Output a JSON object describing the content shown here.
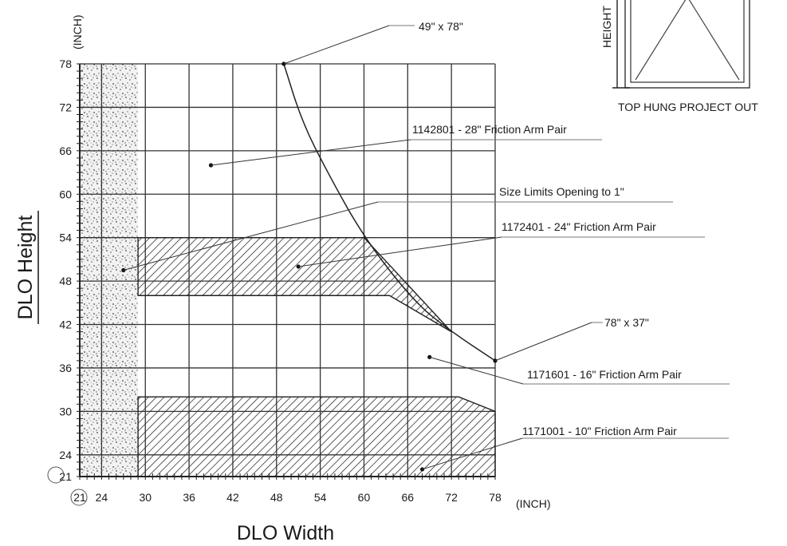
{
  "chart_data": {
    "type": "area",
    "xlabel": "DLO Width",
    "ylabel": "DLO Height",
    "x_unit": "(INCH)",
    "y_unit": "(INCH)",
    "xlim": [
      21,
      78
    ],
    "ylim": [
      21,
      78
    ],
    "x_ticks": [
      21,
      24,
      30,
      36,
      42,
      48,
      54,
      60,
      66,
      72,
      78
    ],
    "y_ticks": [
      21,
      24,
      30,
      36,
      42,
      48,
      54,
      60,
      66,
      72,
      78
    ],
    "grid": true,
    "regions": [
      {
        "name": "Size Limits Opening to 1\"",
        "fill": "stipple",
        "x": [
          21,
          29
        ],
        "y": [
          21,
          78
        ]
      },
      {
        "name": "1171001 - 10\" Friction Arm Pair",
        "fill": "hatch",
        "polygon": [
          [
            29,
            21
          ],
          [
            78,
            21
          ],
          [
            78,
            30
          ],
          [
            73,
            32
          ],
          [
            29,
            32
          ]
        ]
      },
      {
        "name": "1171601 - 16\" Friction Arm Pair",
        "fill": "white",
        "polygon": [
          [
            29,
            32
          ],
          [
            73,
            32
          ],
          [
            78,
            30
          ],
          [
            78,
            37
          ],
          [
            72,
            41
          ],
          [
            63.5,
            46
          ],
          [
            29,
            46
          ]
        ]
      },
      {
        "name": "1172401 - 24\" Friction Arm Pair",
        "fill": "hatch",
        "polygon": [
          [
            29,
            46
          ],
          [
            63.5,
            46
          ],
          [
            72,
            41
          ],
          [
            60,
            54
          ],
          [
            29,
            54
          ]
        ]
      },
      {
        "name": "1142801 - 28\" Friction Arm Pair",
        "fill": "white",
        "polygon": [
          [
            29,
            54
          ],
          [
            60,
            54
          ],
          [
            55,
            63
          ],
          [
            51.5,
            70
          ],
          [
            49,
            78
          ],
          [
            29,
            78
          ]
        ]
      }
    ],
    "max_size_curve": [
      [
        49,
        78
      ],
      [
        51.5,
        70
      ],
      [
        55,
        63
      ],
      [
        60,
        54
      ],
      [
        67,
        45
      ],
      [
        72,
        41
      ],
      [
        78,
        37
      ]
    ],
    "annotations": [
      {
        "text": "49\" x 78\"",
        "x": 49,
        "y": 78
      },
      {
        "text": "78\" x 37\"",
        "x": 78,
        "y": 37
      },
      {
        "text": "1142801 - 28\" Friction Arm Pair",
        "x": 39,
        "y": 64
      },
      {
        "text": "Size Limits Opening to 1\"",
        "x": 27,
        "y": 49.5
      },
      {
        "text": "1172401 - 24\" Friction Arm Pair",
        "x": 51,
        "y": 50
      },
      {
        "text": "1171601 - 16\" Friction Arm Pair",
        "x": 69,
        "y": 37.5
      },
      {
        "text": "1171001 - 10\" Friction Arm Pair",
        "x": 68,
        "y": 22
      }
    ]
  },
  "inset": {
    "side_label": "HEIGHT",
    "caption": "TOP HUNG PROJECT OUT"
  }
}
